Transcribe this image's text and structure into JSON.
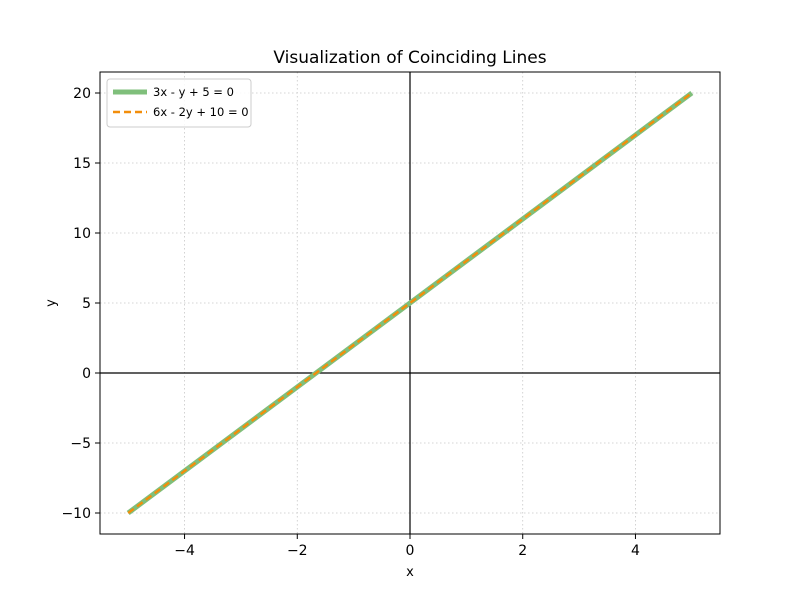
{
  "chart_data": {
    "type": "line",
    "title": "Visualization of Coinciding Lines",
    "xlabel": "x",
    "ylabel": "y",
    "xlim": [
      -5.5,
      5.5
    ],
    "ylim": [
      -11.5,
      21.5
    ],
    "xticks": [
      -4,
      -2,
      0,
      2,
      4
    ],
    "yticks": [
      -10,
      -5,
      0,
      5,
      10,
      15,
      20
    ],
    "grid": true,
    "grid_style": "dotted",
    "reference_lines": {
      "x": 0,
      "y": 0
    },
    "legend_position": "top-left",
    "series": [
      {
        "name": "3x - y + 5 = 0",
        "style": "solid",
        "color": "#7fbf7b",
        "x": [
          -5,
          5
        ],
        "y": [
          -10,
          20
        ]
      },
      {
        "name": "6x - 2y + 10 = 0",
        "style": "dashed",
        "color": "#f28e0b",
        "x": [
          -5,
          5
        ],
        "y": [
          -10,
          20
        ]
      }
    ]
  }
}
